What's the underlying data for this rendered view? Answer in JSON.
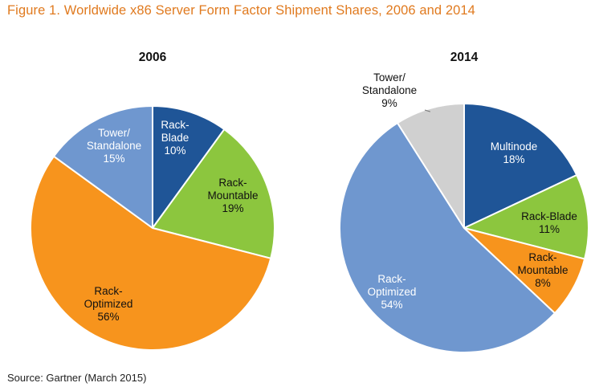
{
  "figure_title": "Figure 1. Worldwide x86 Server Form Factor Shipment Shares, 2006 and 2014",
  "source": "Source: Gartner (March 2015)",
  "chart_data": [
    {
      "type": "pie",
      "title": "2006",
      "slices": [
        {
          "label": "Rack-Blade",
          "value": 10,
          "color": "#1f5597",
          "text_color": "#ffffff"
        },
        {
          "label": "Rack-Mountable",
          "value": 19,
          "color": "#8cc63e",
          "text_color": "#111111"
        },
        {
          "label": "Rack-Optimized",
          "value": 56,
          "color": "#f7941d",
          "text_color": "#111111"
        },
        {
          "label": "Tower/Standalone",
          "value": 15,
          "color": "#6f97cf",
          "text_color": "#ffffff"
        }
      ]
    },
    {
      "type": "pie",
      "title": "2014",
      "slices": [
        {
          "label": "Multinode",
          "value": 18,
          "color": "#1f5597",
          "text_color": "#ffffff"
        },
        {
          "label": "Rack-Blade",
          "value": 11,
          "color": "#8cc63e",
          "text_color": "#111111"
        },
        {
          "label": "Rack-Mountable",
          "value": 8,
          "color": "#f7941d",
          "text_color": "#111111"
        },
        {
          "label": "Rack-Optimized",
          "value": 54,
          "color": "#6f97cf",
          "text_color": "#ffffff"
        },
        {
          "label": "Tower/Standalone",
          "value": 9,
          "color": "#d0d0d0",
          "text_color": "#111111"
        }
      ]
    }
  ]
}
